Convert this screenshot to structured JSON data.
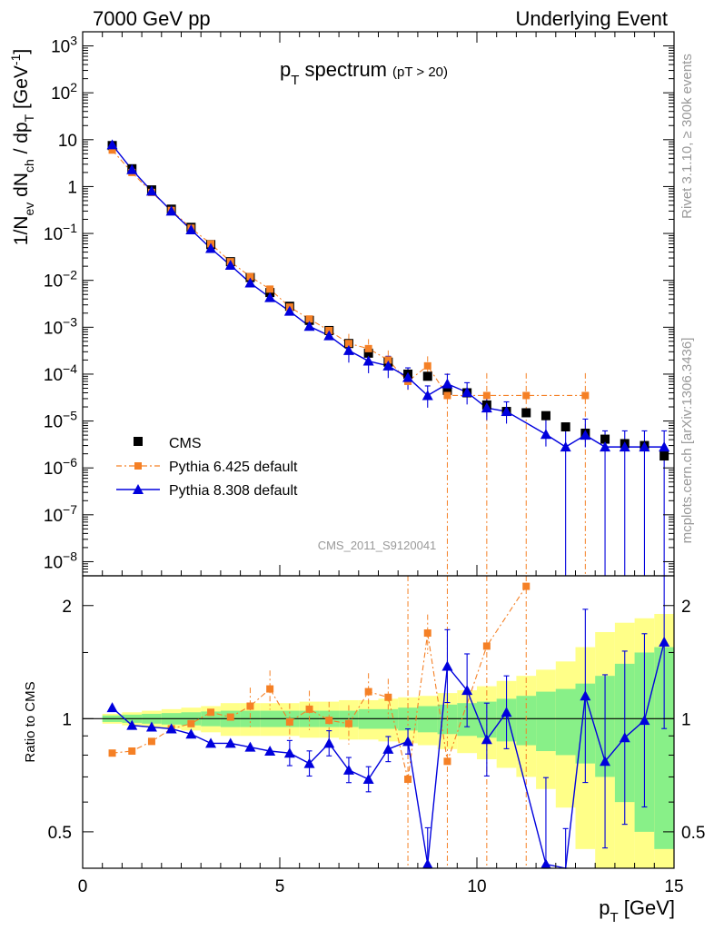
{
  "header": {
    "left": "7000 GeV pp",
    "right": "Underlying Event"
  },
  "side_text": {
    "rivet": "Rivet 3.1.10, ≥ 300k events",
    "mcplots": "mcplots.cern.ch [arXiv:1306.3436]"
  },
  "analysis_id": "CMS_2011_S9120041",
  "chart_data": [
    {
      "type": "scatter",
      "panel": "main",
      "title": "p_T spectrum",
      "title_main": "p",
      "title_sub": "T",
      "title_rest": " spectrum",
      "title_note": "(pT > 20)",
      "xlabel": "p_T [GeV]",
      "ylabel": "1/N_ev dN_ch / dp_T [GeV^-1]",
      "y_scale": "log",
      "xlim": [
        0,
        15
      ],
      "ylim": [
        5e-09,
        2000
      ],
      "grid": false,
      "legend_position": "bottom-left",
      "x_ticks": [
        "0",
        "5",
        "10",
        "15"
      ],
      "y_ticks": [
        {
          "base": "10",
          "exp": "3"
        },
        {
          "base": "10",
          "exp": "2"
        },
        {
          "base": "10",
          "exp": ""
        },
        {
          "base": "1",
          "exp": ""
        },
        {
          "base": "10",
          "exp": "−1"
        },
        {
          "base": "10",
          "exp": "−2"
        },
        {
          "base": "10",
          "exp": "−3"
        },
        {
          "base": "10",
          "exp": "−4"
        },
        {
          "base": "10",
          "exp": "−5"
        },
        {
          "base": "10",
          "exp": "−6"
        },
        {
          "base": "10",
          "exp": "−7"
        },
        {
          "base": "10",
          "exp": "−8"
        }
      ],
      "series": [
        {
          "name": "CMS",
          "color": "#000000",
          "marker": "square",
          "x": [
            0.75,
            1.25,
            1.75,
            2.25,
            2.75,
            3.25,
            3.75,
            4.25,
            4.75,
            5.25,
            5.75,
            6.25,
            6.75,
            7.25,
            7.75,
            8.25,
            8.75,
            9.25,
            9.75,
            10.25,
            10.75,
            11.25,
            11.75,
            12.25,
            12.75,
            13.25,
            13.75,
            14.25,
            14.75
          ],
          "y": [
            7.5,
            2.4,
            0.85,
            0.33,
            0.135,
            0.058,
            0.025,
            0.0115,
            0.0055,
            0.0028,
            0.0014,
            0.00085,
            0.00045,
            0.00028,
            0.00018,
            0.0001,
            9e-05,
            4.5e-05,
            4e-05,
            2.2e-05,
            1.6e-05,
            1.5e-05,
            1.3e-05,
            7.5e-06,
            5.5e-06,
            4.1e-06,
            3.3e-06,
            3e-06,
            1.8e-06
          ]
        },
        {
          "name": "Pythia 6.425 default",
          "color": "#f58025",
          "marker": "small-square",
          "line": "dash-dot",
          "x": [
            0.75,
            1.25,
            1.75,
            2.25,
            2.75,
            3.25,
            3.75,
            4.25,
            4.75,
            5.25,
            5.75,
            6.25,
            6.75,
            7.25,
            7.75,
            8.25,
            8.75,
            9.25,
            10.25,
            11.25,
            12.75
          ],
          "y": [
            6.0,
            2.0,
            0.75,
            0.31,
            0.13,
            0.06,
            0.025,
            0.012,
            0.0065,
            0.0027,
            0.0015,
            0.00085,
            0.00045,
            0.00035,
            0.0002,
            7e-05,
            0.00015,
            3.5e-05,
            3.5e-05,
            3.5e-05,
            3.5e-05
          ]
        },
        {
          "name": "Pythia 8.308 default",
          "color": "#0000dd",
          "marker": "triangle",
          "line": "solid",
          "x": [
            0.75,
            1.25,
            1.75,
            2.25,
            2.75,
            3.25,
            3.75,
            4.25,
            4.75,
            5.25,
            5.75,
            6.25,
            6.75,
            7.25,
            7.75,
            8.25,
            8.75,
            9.25,
            9.75,
            10.25,
            10.75,
            11.75,
            12.25,
            12.75,
            13.25,
            13.75,
            14.25,
            14.75
          ],
          "y": [
            7.8,
            2.3,
            0.8,
            0.3,
            0.12,
            0.048,
            0.021,
            0.0088,
            0.0043,
            0.0022,
            0.00105,
            0.00066,
            0.00032,
            0.00019,
            0.00015,
            8.5e-05,
            3.5e-05,
            6.2e-05,
            4.1e-05,
            1.9e-05,
            1.6e-05,
            5.2e-06,
            2.8e-06,
            5e-06,
            2.8e-06,
            2.8e-06,
            2.8e-06,
            2.8e-06
          ]
        }
      ]
    },
    {
      "type": "line",
      "panel": "ratio",
      "ylabel": "Ratio to CMS",
      "y_scale": "log",
      "xlim": [
        0,
        15
      ],
      "ylim": [
        0.4,
        2.4
      ],
      "reference_line": 1,
      "y_ticks": [
        "2",
        "1",
        "0.5"
      ],
      "bands": {
        "inner_color": "#88f088",
        "outer_color": "#ffff88",
        "x_edges": [
          0.5,
          1.0,
          1.5,
          2.0,
          2.5,
          3.0,
          3.5,
          4.0,
          4.5,
          5.0,
          5.5,
          6.0,
          6.5,
          7.0,
          7.5,
          8.0,
          8.5,
          9.0,
          9.5,
          10.0,
          10.5,
          11.0,
          11.5,
          12.0,
          12.5,
          13.0,
          13.5,
          14.0,
          14.5,
          15.0
        ],
        "inner_halfwidth": [
          0.02,
          0.025,
          0.03,
          0.035,
          0.04,
          0.045,
          0.05,
          0.05,
          0.05,
          0.05,
          0.05,
          0.05,
          0.05,
          0.06,
          0.06,
          0.07,
          0.08,
          0.09,
          0.1,
          0.11,
          0.13,
          0.15,
          0.18,
          0.2,
          0.24,
          0.3,
          0.4,
          0.5,
          0.55
        ],
        "outer_halfwidth": [
          0.03,
          0.04,
          0.05,
          0.06,
          0.07,
          0.08,
          0.1,
          0.1,
          0.1,
          0.1,
          0.11,
          0.11,
          0.12,
          0.12,
          0.13,
          0.14,
          0.15,
          0.17,
          0.19,
          0.22,
          0.26,
          0.3,
          0.35,
          0.42,
          0.55,
          0.7,
          0.8,
          0.85,
          0.9
        ]
      },
      "series": [
        {
          "name": "Pythia 6.425 default",
          "color": "#f58025",
          "x": [
            0.75,
            1.25,
            1.75,
            2.25,
            2.75,
            3.25,
            3.75,
            4.25,
            4.75,
            5.25,
            5.75,
            6.25,
            6.75,
            7.25,
            7.75,
            8.25,
            8.75,
            9.25,
            10.25,
            11.25
          ],
          "y": [
            0.81,
            0.82,
            0.87,
            0.94,
            0.97,
            1.04,
            1.01,
            1.08,
            1.2,
            0.98,
            1.06,
            0.99,
            0.97,
            1.18,
            1.14,
            0.69,
            1.69,
            0.77,
            1.56,
            2.25
          ]
        },
        {
          "name": "Pythia 8.308 default",
          "color": "#0000dd",
          "x": [
            0.75,
            1.25,
            1.75,
            2.25,
            2.75,
            3.25,
            3.75,
            4.25,
            4.75,
            5.25,
            5.75,
            6.25,
            6.75,
            7.25,
            7.75,
            8.25,
            8.75,
            9.25,
            9.75,
            10.25,
            10.75,
            11.75,
            12.25,
            12.75,
            13.25,
            13.75,
            14.25,
            14.75
          ],
          "y": [
            1.07,
            0.96,
            0.95,
            0.94,
            0.91,
            0.86,
            0.86,
            0.84,
            0.82,
            0.81,
            0.76,
            0.86,
            0.73,
            0.69,
            0.83,
            0.87,
            0.41,
            1.38,
            1.19,
            0.88,
            1.04,
            0.41,
            0.3,
            1.15,
            0.77,
            0.89,
            0.99,
            1.6
          ]
        }
      ]
    }
  ]
}
